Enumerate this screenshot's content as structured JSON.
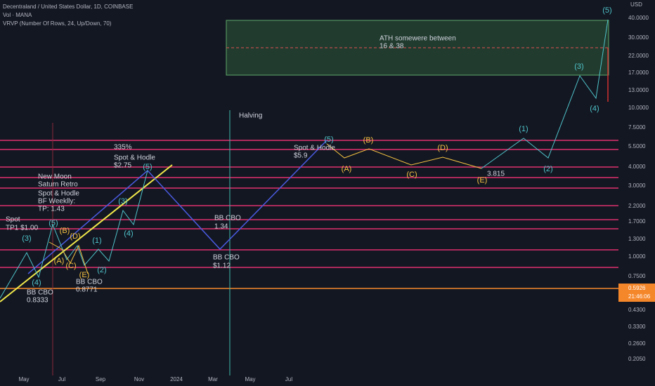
{
  "header": {
    "symbol": "Decentraland / United States Dollar, 1D, COINBASE",
    "volume": "Vol · MANA",
    "indicator": "VRVP (Number Of Rows, 24, Up/Down, 70)"
  },
  "price_axis": {
    "currency": "USD",
    "labels": [
      "40.0000",
      "30.0000",
      "22.0000",
      "17.0000",
      "13.0000",
      "10.0000",
      "7.5000",
      "5.5000",
      "4.0000",
      "3.0000",
      "2.2000",
      "1.7000",
      "1.3000",
      "1.0000",
      "0.7500",
      "0.4300",
      "0.3300",
      "0.2600",
      "0.2050"
    ],
    "last_price": "0.5926",
    "countdown": "21:46:06"
  },
  "time_axis": {
    "labels": [
      "May",
      "Jul",
      "Sep",
      "Nov",
      "2024",
      "Mar",
      "May",
      "Jul"
    ]
  },
  "notes": [
    "ATH somewere between",
    "16 & 38",
    "Halving",
    "Spot & Hodle",
    "$5.9",
    "335%",
    "Spot & Hodle",
    "$2.75",
    "New Moon",
    "Saturn Retro",
    "Spot & Hodle",
    "BF Weeklly:",
    "TP: 1.43",
    "Spot",
    "TP1 $1.00",
    "BB CBO",
    "1.34",
    "BB CBO",
    "$1.12",
    "BB CBO",
    "0.8771",
    "BB CBO",
    "0.8333",
    "3.815"
  ],
  "waves": [
    "(5)",
    "(3)",
    "(4)",
    "(1)",
    "(2)",
    "(5)",
    "(5)",
    "(3)",
    "(4)",
    "(1)",
    "(2)",
    "(5)",
    "(3)",
    "(4)"
  ],
  "corrections": [
    "(B)",
    "(D)",
    "(A)",
    "(C)",
    "(E)",
    "(B)",
    "(D)",
    "(A)",
    "(C)",
    "(E)"
  ]
}
